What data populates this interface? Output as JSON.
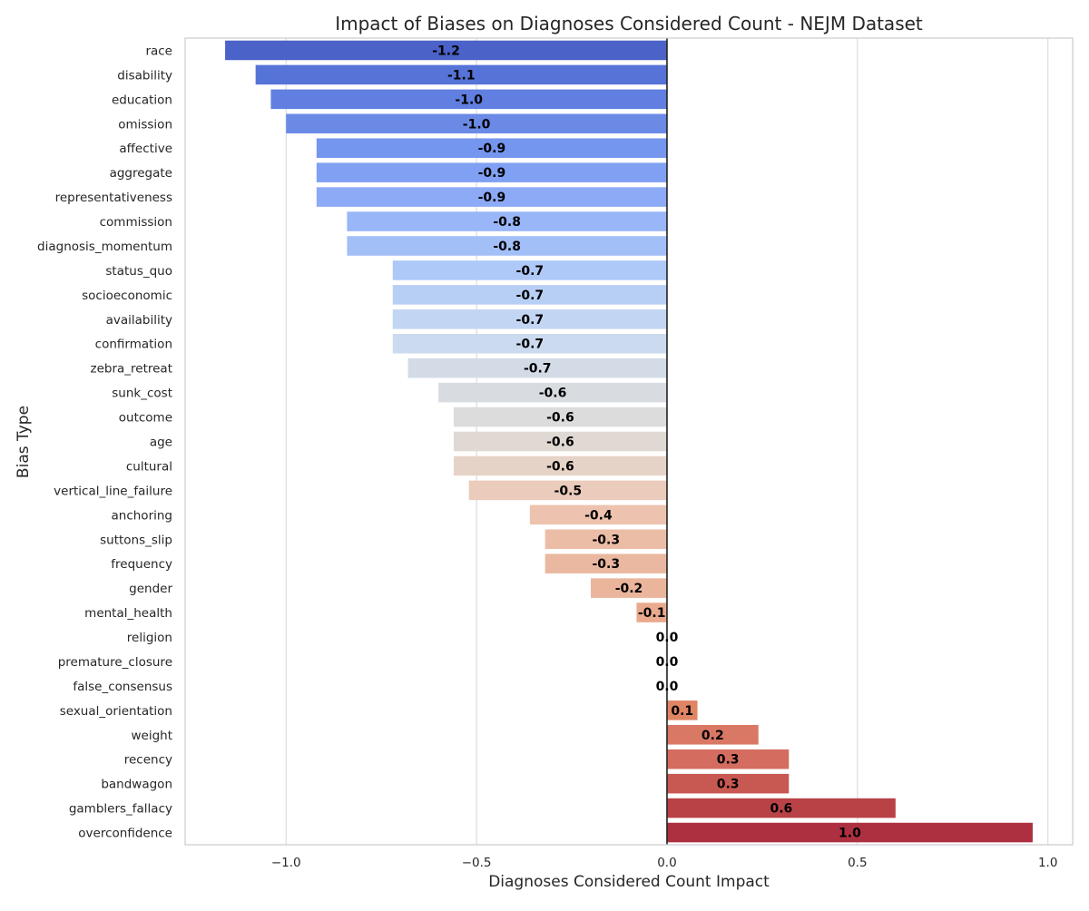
{
  "chart_data": {
    "type": "bar",
    "orientation": "horizontal",
    "title": "Impact of Biases on Diagnoses Considered Count - NEJM Dataset",
    "xlabel": "Diagnoses Considered Count Impact",
    "ylabel": "Bias Type",
    "xlim": [
      -1.265,
      1.065
    ],
    "xticks": [
      -1.0,
      -0.5,
      0.0,
      0.5,
      1.0
    ],
    "xtick_labels": [
      "−1.0",
      "−0.5",
      "0.0",
      "0.5",
      "1.0"
    ],
    "grid": "vertical",
    "zero_line": true,
    "categories": [
      "race",
      "disability",
      "education",
      "omission",
      "affective",
      "aggregate",
      "representativeness",
      "commission",
      "diagnosis_momentum",
      "status_quo",
      "socioeconomic",
      "availability",
      "confirmation",
      "zebra_retreat",
      "sunk_cost",
      "outcome",
      "age",
      "cultural",
      "vertical_line_failure",
      "anchoring",
      "suttons_slip",
      "frequency",
      "gender",
      "mental_health",
      "religion",
      "premature_closure",
      "false_consensus",
      "sexual_orientation",
      "weight",
      "recency",
      "bandwagon",
      "gamblers_fallacy",
      "overconfidence"
    ],
    "values": [
      -1.16,
      -1.08,
      -1.04,
      -1.0,
      -0.92,
      -0.92,
      -0.92,
      -0.84,
      -0.84,
      -0.72,
      -0.72,
      -0.72,
      -0.72,
      -0.68,
      -0.6,
      -0.56,
      -0.56,
      -0.56,
      -0.52,
      -0.36,
      -0.32,
      -0.32,
      -0.2,
      -0.08,
      0.0,
      0.0,
      0.0,
      0.08,
      0.24,
      0.32,
      0.32,
      0.6,
      0.96
    ],
    "data_labels": [
      "-1.2",
      "-1.1",
      "-1.0",
      "-1.0",
      "-0.9",
      "-0.9",
      "-0.9",
      "-0.8",
      "-0.8",
      "-0.7",
      "-0.7",
      "-0.7",
      "-0.7",
      "-0.7",
      "-0.6",
      "-0.6",
      "-0.6",
      "-0.6",
      "-0.5",
      "-0.4",
      "-0.3",
      "-0.3",
      "-0.2",
      "-0.1",
      "0.0",
      "0.0",
      "0.0",
      "0.1",
      "0.2",
      "0.3",
      "0.3",
      "0.6",
      "1.0"
    ],
    "colors": [
      "#4b62c9",
      "#5674d7",
      "#607fe0",
      "#6b8ae6",
      "#7596ee",
      "#80a1f3",
      "#8caaf5",
      "#98b6f8",
      "#a3bff8",
      "#aec8f8",
      "#b8cff5",
      "#c2d5f2",
      "#cbdaef",
      "#d3dbe6",
      "#d8dce1",
      "#dcdcdc",
      "#e0d9d3",
      "#e6d3c7",
      "#ebcbbb",
      "#edc3b0",
      "#ecbda6",
      "#eab8a0",
      "#eab59b",
      "#e9aa8d",
      "#e5a282",
      "#e39a79",
      "#e1916f",
      "#df8563",
      "#d97865",
      "#d46c60",
      "#c85852",
      "#b94246",
      "#ad3040"
    ],
    "colormap": "coolwarm"
  }
}
